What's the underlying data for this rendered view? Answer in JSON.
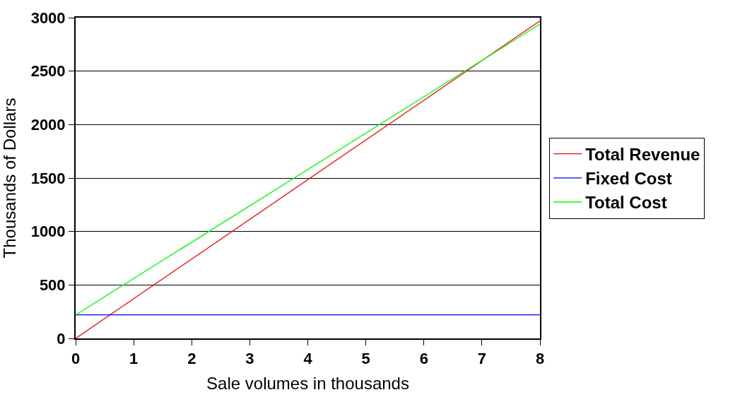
{
  "chart_data": {
    "type": "line",
    "xlabel": "Sale volumes in thousands",
    "ylabel": "Thousands of Dollars",
    "x": [
      0,
      8
    ],
    "series": [
      {
        "name": "Total Revenue",
        "color": "#ff0000",
        "values": [
          0,
          2970
        ]
      },
      {
        "name": "Fixed Cost",
        "color": "#0000ff",
        "values": [
          220,
          220
        ]
      },
      {
        "name": "Total Cost",
        "color": "#00ff00",
        "values": [
          220,
          2940
        ]
      }
    ],
    "xlim": [
      0,
      8
    ],
    "xticks": [
      0,
      1,
      2,
      3,
      4,
      5,
      6,
      7,
      8
    ],
    "ylim": [
      0,
      3000
    ],
    "yticks": [
      0,
      500,
      1000,
      1500,
      2000,
      2500,
      3000
    ],
    "grid": "y",
    "legend": "right",
    "marker": "none",
    "line_style": "solid"
  }
}
